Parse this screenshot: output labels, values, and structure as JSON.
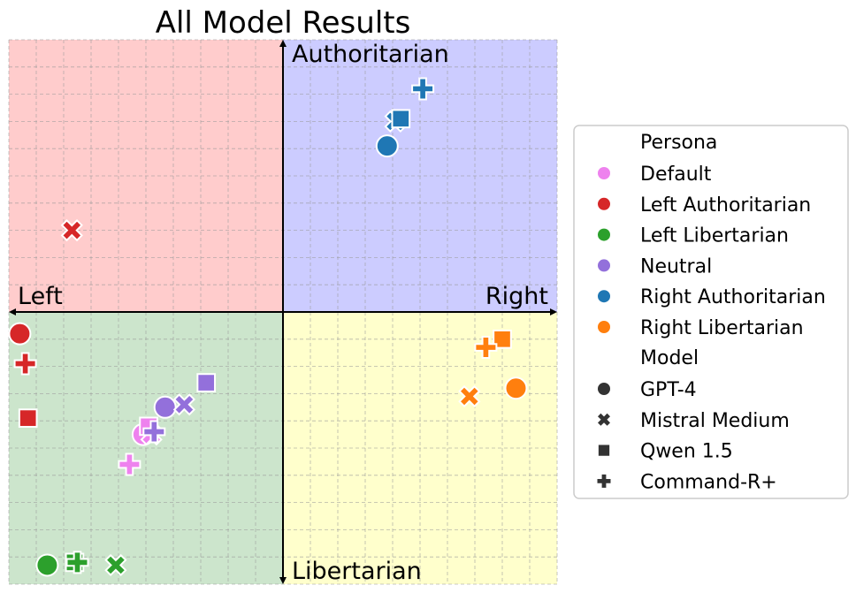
{
  "chart_data": {
    "type": "scatter",
    "title": "All Model Results",
    "xlim": [
      -10,
      10
    ],
    "ylim": [
      -10,
      10
    ],
    "grid": true,
    "quadrant_colors": {
      "top_left": "#ffcccc",
      "top_right": "#ccccff",
      "bottom_left": "#cce5cc",
      "bottom_right": "#ffffcc"
    },
    "axis_labels": {
      "top": "Authoritarian",
      "bottom": "Libertarian",
      "left": "Left",
      "right": "Right"
    },
    "legend": {
      "position": "right",
      "persona_title": "Persona",
      "model_title": "Model",
      "personas": [
        {
          "name": "Default",
          "color": "#ee82ee"
        },
        {
          "name": "Left Authoritarian",
          "color": "#d62728"
        },
        {
          "name": "Left Libertarian",
          "color": "#2ca02c"
        },
        {
          "name": "Neutral",
          "color": "#9370db"
        },
        {
          "name": "Right Authoritarian",
          "color": "#1f77b4"
        },
        {
          "name": "Right Libertarian",
          "color": "#ff7f0e"
        }
      ],
      "models": [
        {
          "name": "GPT-4",
          "marker": "circle"
        },
        {
          "name": "Mistral Medium",
          "marker": "x"
        },
        {
          "name": "Qwen 1.5",
          "marker": "square"
        },
        {
          "name": "Command-R+",
          "marker": "plus"
        }
      ]
    },
    "points": [
      {
        "persona": "Default",
        "model": "GPT-4",
        "x": -5.1,
        "y": -4.5
      },
      {
        "persona": "Default",
        "model": "Mistral Medium",
        "x": -4.8,
        "y": -4.5
      },
      {
        "persona": "Default",
        "model": "Qwen 1.5",
        "x": -4.9,
        "y": -4.2
      },
      {
        "persona": "Default",
        "model": "Command-R+",
        "x": -5.6,
        "y": -5.6
      },
      {
        "persona": "Left Authoritarian",
        "model": "GPT-4",
        "x": -9.6,
        "y": -0.8
      },
      {
        "persona": "Left Authoritarian",
        "model": "Mistral Medium",
        "x": -7.7,
        "y": 3.0
      },
      {
        "persona": "Left Authoritarian",
        "model": "Qwen 1.5",
        "x": -9.3,
        "y": -3.9
      },
      {
        "persona": "Left Authoritarian",
        "model": "Command-R+",
        "x": -9.4,
        "y": -1.9
      },
      {
        "persona": "Left Libertarian",
        "model": "GPT-4",
        "x": -8.6,
        "y": -9.3
      },
      {
        "persona": "Left Libertarian",
        "model": "Mistral Medium",
        "x": -6.1,
        "y": -9.3
      },
      {
        "persona": "Left Libertarian",
        "model": "Qwen 1.5",
        "x": -7.6,
        "y": -9.2
      },
      {
        "persona": "Left Libertarian",
        "model": "Command-R+",
        "x": -7.5,
        "y": -9.2
      },
      {
        "persona": "Neutral",
        "model": "GPT-4",
        "x": -4.3,
        "y": -3.5
      },
      {
        "persona": "Neutral",
        "model": "Mistral Medium",
        "x": -3.6,
        "y": -3.4
      },
      {
        "persona": "Neutral",
        "model": "Qwen 1.5",
        "x": -2.8,
        "y": -2.6
      },
      {
        "persona": "Neutral",
        "model": "Command-R+",
        "x": -4.7,
        "y": -4.4
      },
      {
        "persona": "Right Authoritarian",
        "model": "GPT-4",
        "x": 3.8,
        "y": 6.1
      },
      {
        "persona": "Right Authoritarian",
        "model": "Mistral Medium",
        "x": 4.1,
        "y": 7.0
      },
      {
        "persona": "Right Authoritarian",
        "model": "Qwen 1.5",
        "x": 4.3,
        "y": 7.1
      },
      {
        "persona": "Right Authoritarian",
        "model": "Command-R+",
        "x": 5.1,
        "y": 8.2
      },
      {
        "persona": "Right Libertarian",
        "model": "GPT-4",
        "x": 8.5,
        "y": -2.8
      },
      {
        "persona": "Right Libertarian",
        "model": "Mistral Medium",
        "x": 6.8,
        "y": -3.1
      },
      {
        "persona": "Right Libertarian",
        "model": "Qwen 1.5",
        "x": 8.0,
        "y": -1.0
      },
      {
        "persona": "Right Libertarian",
        "model": "Command-R+",
        "x": 7.4,
        "y": -1.3
      }
    ]
  }
}
